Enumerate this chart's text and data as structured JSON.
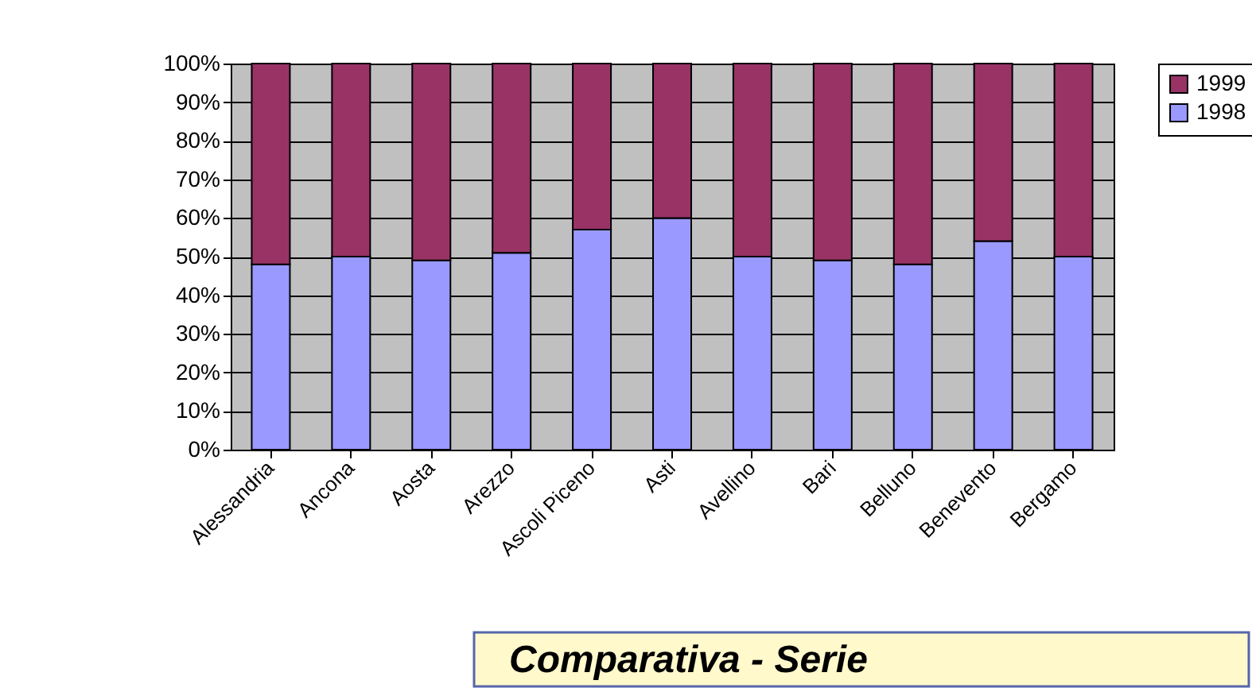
{
  "chart_data": {
    "type": "bar",
    "stacked": true,
    "categories": [
      "Alessandria",
      "Ancona",
      "Aosta",
      "Arezzo",
      "Ascoli Piceno",
      "Asti",
      "Avellino",
      "Bari",
      "Belluno",
      "Benevento",
      "Bergamo"
    ],
    "series": [
      {
        "name": "1998",
        "color": "#9999ff",
        "values": [
          48,
          50,
          49,
          51,
          57,
          60,
          50,
          49,
          48,
          54,
          50
        ]
      },
      {
        "name": "1999",
        "color": "#993366",
        "values": [
          52,
          50,
          51,
          49,
          43,
          40,
          50,
          51,
          52,
          46,
          50
        ]
      }
    ],
    "ylim": [
      0,
      100
    ],
    "yticks": [
      {
        "value": 0,
        "label": "0%"
      },
      {
        "value": 10,
        "label": "10%"
      },
      {
        "value": 20,
        "label": "20%"
      },
      {
        "value": 30,
        "label": "30%"
      },
      {
        "value": 40,
        "label": "40%"
      },
      {
        "value": 50,
        "label": "50%"
      },
      {
        "value": 60,
        "label": "60%"
      },
      {
        "value": 70,
        "label": "70%"
      },
      {
        "value": 80,
        "label": "80%"
      },
      {
        "value": 90,
        "label": "90%"
      },
      {
        "value": 100,
        "label": "100%"
      }
    ],
    "grid": "y",
    "legend": "right",
    "annotations": [
      "Comparativa - Serie"
    ]
  }
}
